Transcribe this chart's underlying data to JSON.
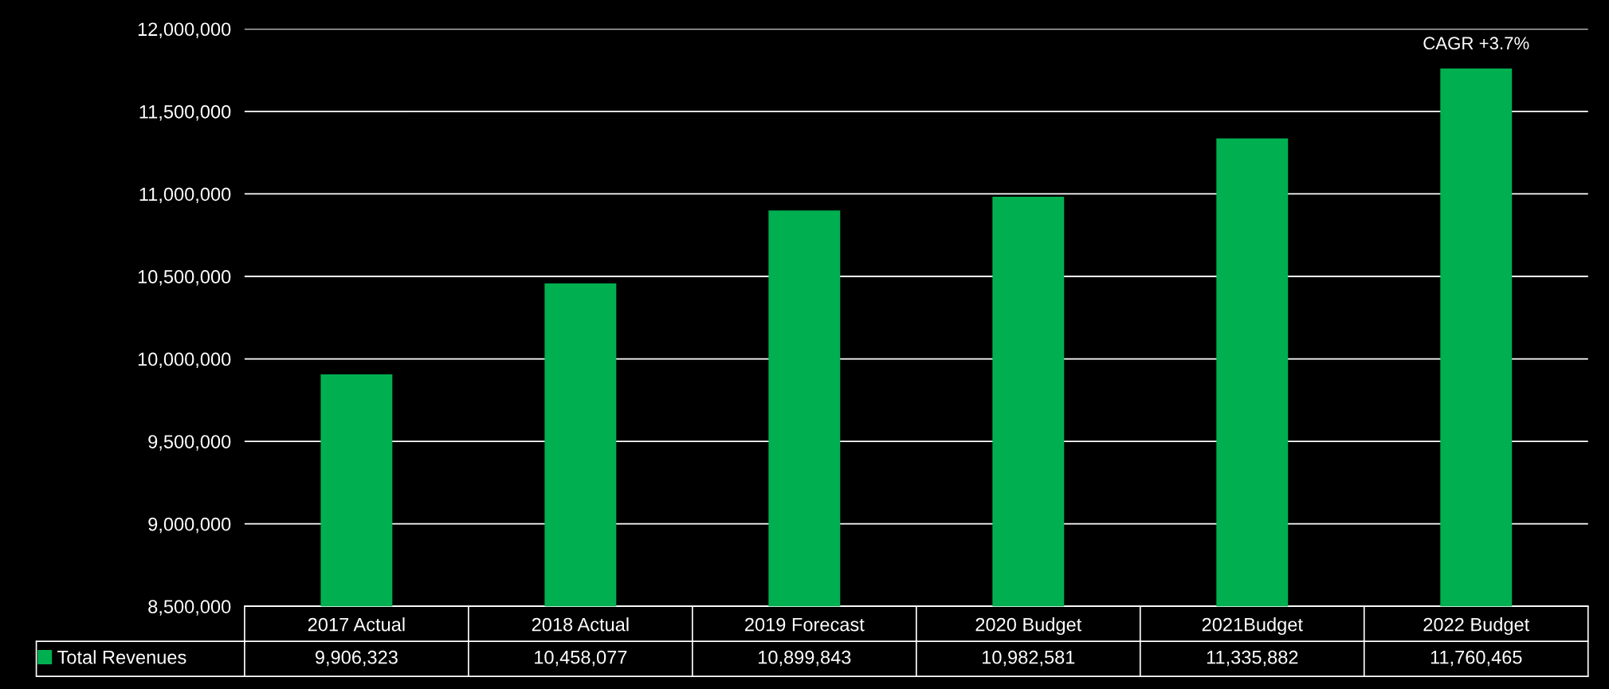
{
  "chart_data": {
    "type": "bar",
    "categories": [
      "2017 Actual",
      "2018 Actual",
      "2019 Forecast",
      "2020 Budget",
      "2021Budget",
      "2022 Budget"
    ],
    "series": [
      {
        "name": "Total Revenues",
        "color": "#00b050",
        "values": [
          9906323,
          10458077,
          10899843,
          10982581,
          11335882,
          11760465
        ],
        "value_labels": [
          "9,906,323",
          "10,458,077",
          "10,899,843",
          "10,982,581",
          "11,335,882",
          "11,760,465"
        ]
      }
    ],
    "ylim": [
      8500000,
      12000000
    ],
    "yticks": [
      {
        "value": 8500000,
        "label": "8,500,000"
      },
      {
        "value": 9000000,
        "label": "9,000,000"
      },
      {
        "value": 9500000,
        "label": "9,500,000"
      },
      {
        "value": 10000000,
        "label": "10,000,000"
      },
      {
        "value": 10500000,
        "label": "10,500,000"
      },
      {
        "value": 11000000,
        "label": "11,000,000"
      },
      {
        "value": 11500000,
        "label": "11,500,000"
      },
      {
        "value": 12000000,
        "label": "12,000,000"
      }
    ],
    "grid": "y",
    "legend": "bottom",
    "annotations": [
      {
        "text": "CAGR +3.7%",
        "x": "2022 Budget",
        "y": 11760465
      }
    ]
  }
}
